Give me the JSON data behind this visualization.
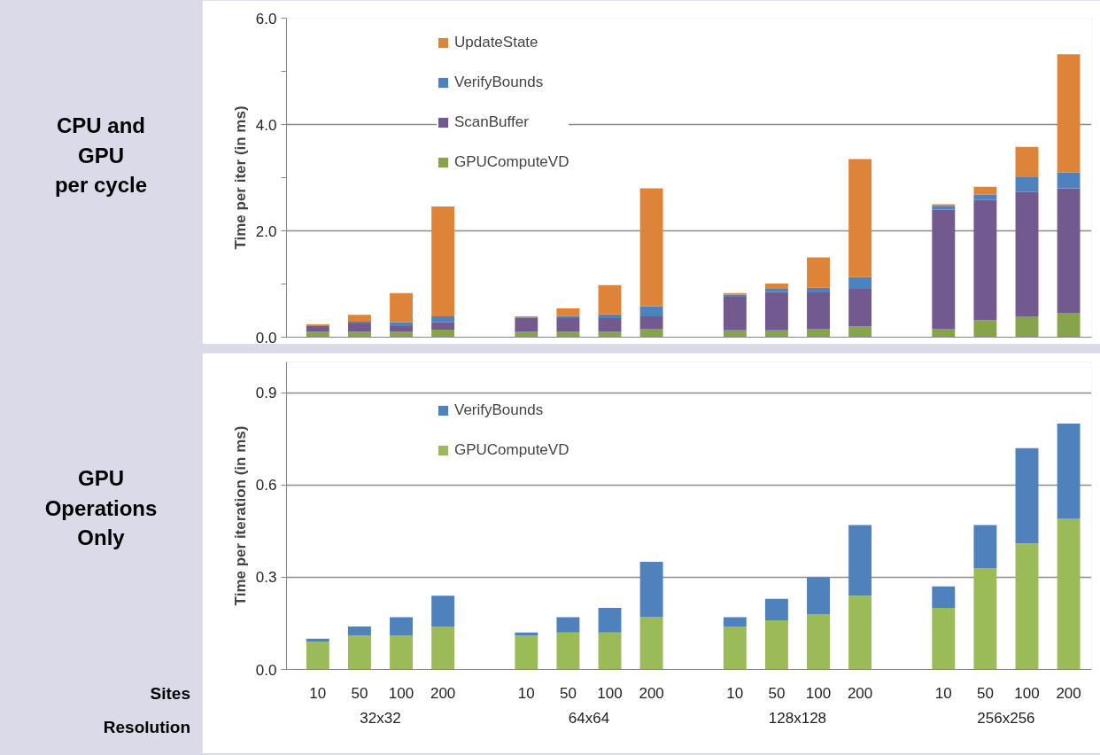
{
  "chart_data": [
    {
      "type": "bar",
      "title": "CPU and\nGPU\nper cycle",
      "ylabel": "Time per iter (in ms)",
      "stacked": true,
      "legend": "top left",
      "grid": "y",
      "tick_labels": "y",
      "categories": [
        "10",
        "50",
        "100",
        "200",
        null,
        "10",
        "50",
        "100",
        "200",
        null,
        "10",
        "50",
        "100",
        "200",
        null,
        "10",
        "50",
        "100",
        "200"
      ],
      "ylim": [
        0,
        6
      ],
      "yticks": [
        {
          "value": 0,
          "label": "0.0"
        },
        {
          "value": 1,
          "label": null
        },
        {
          "value": 2,
          "label": "2.0"
        },
        {
          "value": 3,
          "label": null
        },
        {
          "value": 4,
          "label": "4.0"
        },
        {
          "value": 5,
          "label": null
        },
        {
          "value": 6,
          "label": "6.0"
        }
      ],
      "series": [
        {
          "name": "GPUComputeVD",
          "color": "#87a34b",
          "values": [
            0.1,
            0.1,
            0.1,
            0.14,
            null,
            0.1,
            0.1,
            0.1,
            0.16,
            null,
            0.13,
            0.13,
            0.16,
            0.2,
            null,
            0.16,
            0.32,
            0.39,
            0.46
          ]
        },
        {
          "name": "ScanBuffer",
          "color": "#725a8e",
          "values": [
            0.11,
            0.16,
            0.11,
            0.14,
            null,
            0.26,
            0.26,
            0.26,
            0.23,
            null,
            0.63,
            0.72,
            0.68,
            0.71,
            null,
            2.24,
            2.26,
            2.34,
            2.34
          ]
        },
        {
          "name": "VerifyBounds",
          "color": "#4f81bd",
          "values": [
            0.01,
            0.03,
            0.07,
            0.11,
            null,
            0.01,
            0.04,
            0.07,
            0.19,
            null,
            0.04,
            0.06,
            0.09,
            0.22,
            null,
            0.07,
            0.1,
            0.29,
            0.3
          ]
        },
        {
          "name": "UpdateState",
          "color": "#dd8439",
          "values": [
            0.02,
            0.13,
            0.55,
            2.07,
            null,
            0.02,
            0.14,
            0.55,
            2.22,
            null,
            0.03,
            0.1,
            0.57,
            2.22,
            null,
            0.03,
            0.15,
            0.56,
            2.22
          ]
        }
      ]
    },
    {
      "type": "bar",
      "title": "GPU\nOperations\nOnly",
      "ylabel": "Time per iteration (in ms)",
      "stacked": true,
      "legend": "top left",
      "grid": "y",
      "categories": [
        "10",
        "50",
        "100",
        "200",
        null,
        "10",
        "50",
        "100",
        "200",
        null,
        "10",
        "50",
        "100",
        "200",
        null,
        "10",
        "50",
        "100",
        "200"
      ],
      "annotations": [
        "Sites",
        "Resolution",
        "32x32",
        "64x64",
        "128x128",
        "256x256"
      ],
      "ylim": [
        0,
        1.0
      ],
      "yticks": [
        {
          "value": 0,
          "label": "0.0"
        },
        {
          "value": 0.3,
          "label": "0.3"
        },
        {
          "value": 0.6,
          "label": "0.6"
        },
        {
          "value": 0.9,
          "label": "0.9"
        }
      ],
      "series": [
        {
          "name": "GPUComputeVD",
          "color": "#9bbb59",
          "values": [
            0.09,
            0.11,
            0.11,
            0.14,
            null,
            0.11,
            0.12,
            0.12,
            0.17,
            null,
            0.14,
            0.16,
            0.18,
            0.24,
            null,
            0.2,
            0.33,
            0.41,
            0.49
          ]
        },
        {
          "name": "VerifyBounds",
          "color": "#4f81bd",
          "values": [
            0.01,
            0.03,
            0.06,
            0.1,
            null,
            0.01,
            0.05,
            0.08,
            0.18,
            null,
            0.03,
            0.07,
            0.12,
            0.23,
            null,
            0.07,
            0.14,
            0.31,
            0.31
          ]
        }
      ]
    }
  ]
}
